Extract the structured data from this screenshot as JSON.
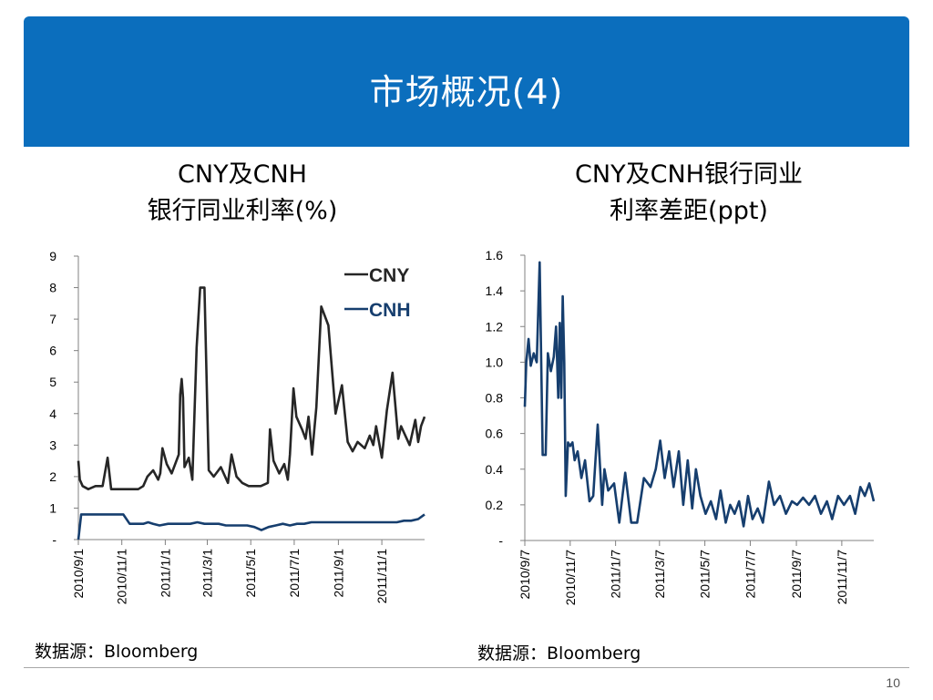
{
  "header": {
    "title": "市场概况(4)"
  },
  "chart_data": [
    {
      "type": "line",
      "title_line1": "CNY及CNH",
      "title_line2": "银行同业利率(%)",
      "xlabel": "",
      "ylabel": "",
      "x_range": [
        "2010/9/1",
        "2011/12/31"
      ],
      "ylim": [
        0,
        9
      ],
      "y_ticks": [
        "-",
        "1",
        "2",
        "3",
        "4",
        "5",
        "6",
        "7",
        "8",
        "9"
      ],
      "x_ticks": [
        "2010/9/1",
        "2010/11/1",
        "2011/1/1",
        "2011/3/1",
        "2011/5/1",
        "2011/7/1",
        "2011/9/1",
        "2011/11/1"
      ],
      "legend_position": "top-right",
      "series": [
        {
          "name": "CNY",
          "color": "#262626",
          "x": [
            "2010/9/1",
            "2010/9/3",
            "2010/9/7",
            "2010/9/15",
            "2010/9/25",
            "2010/10/5",
            "2010/10/12",
            "2010/10/17",
            "2010/10/25",
            "2010/11/5",
            "2010/11/14",
            "2010/11/24",
            "2010/12/1",
            "2010/12/7",
            "2010/12/15",
            "2010/12/22",
            "2010/12/25",
            "2010/12/28",
            "2011/1/3",
            "2011/1/10",
            "2011/1/20",
            "2011/1/22",
            "2011/1/24",
            "2011/1/26",
            "2011/1/28",
            "2011/2/3",
            "2011/2/8",
            "2011/2/14",
            "2011/2/19",
            "2011/2/25",
            "2011/3/3",
            "2011/3/10",
            "2011/3/20",
            "2011/3/30",
            "2011/4/4",
            "2011/4/11",
            "2011/4/19",
            "2011/4/28",
            "2011/5/5",
            "2011/5/15",
            "2011/5/25",
            "2011/5/28",
            "2011/6/2",
            "2011/6/10",
            "2011/6/17",
            "2011/6/22",
            "2011/6/25",
            "2011/6/30",
            "2011/7/4",
            "2011/7/12",
            "2011/7/17",
            "2011/7/21",
            "2011/7/26",
            "2011/8/1",
            "2011/8/8",
            "2011/8/18",
            "2011/8/28",
            "2011/9/6",
            "2011/9/14",
            "2011/9/21",
            "2011/9/28",
            "2011/10/8",
            "2011/10/15",
            "2011/10/20",
            "2011/10/24",
            "2011/11/1",
            "2011/11/8",
            "2011/11/16",
            "2011/11/24",
            "2011/11/28",
            "2011/12/2",
            "2011/12/10",
            "2011/12/18",
            "2011/12/22",
            "2011/12/26",
            "2011/12/31"
          ],
          "values": [
            2.5,
            1.9,
            1.7,
            1.6,
            1.7,
            1.7,
            2.6,
            1.6,
            1.6,
            1.6,
            1.6,
            1.6,
            1.7,
            2.0,
            2.2,
            1.9,
            2.1,
            2.9,
            2.4,
            2.1,
            2.7,
            4.6,
            5.1,
            4.5,
            2.3,
            2.6,
            1.9,
            6.1,
            8.0,
            8.0,
            2.2,
            2.0,
            2.3,
            1.8,
            2.7,
            2.0,
            1.8,
            1.7,
            1.7,
            1.7,
            1.8,
            3.5,
            2.5,
            2.1,
            2.4,
            1.9,
            2.7,
            4.8,
            3.9,
            3.5,
            3.2,
            3.9,
            2.7,
            4.2,
            7.4,
            6.8,
            4.0,
            4.9,
            3.1,
            2.8,
            3.1,
            2.9,
            3.3,
            3.0,
            3.6,
            2.6,
            4.1,
            5.3,
            3.2,
            3.6,
            3.4,
            3.0,
            3.8,
            3.1,
            3.6,
            3.9
          ]
        },
        {
          "name": "CNH",
          "color": "#163e6e",
          "x": [
            "2010/9/1",
            "2010/9/5",
            "2010/9/10",
            "2010/9/20",
            "2010/10/1",
            "2010/10/10",
            "2010/10/20",
            "2010/10/27",
            "2010/11/3",
            "2010/11/12",
            "2010/11/22",
            "2010/12/1",
            "2010/12/8",
            "2010/12/15",
            "2010/12/24",
            "2011/1/5",
            "2011/1/15",
            "2011/1/25",
            "2011/2/5",
            "2011/2/15",
            "2011/2/25",
            "2011/3/7",
            "2011/3/17",
            "2011/3/27",
            "2011/4/6",
            "2011/4/16",
            "2011/4/26",
            "2011/5/6",
            "2011/5/16",
            "2011/5/26",
            "2011/6/5",
            "2011/6/15",
            "2011/6/25",
            "2011/7/5",
            "2011/7/15",
            "2011/7/25",
            "2011/8/4",
            "2011/8/14",
            "2011/8/24",
            "2011/9/3",
            "2011/9/13",
            "2011/9/23",
            "2011/10/3",
            "2011/10/13",
            "2011/10/23",
            "2011/11/2",
            "2011/11/12",
            "2011/11/22",
            "2011/12/2",
            "2011/12/12",
            "2011/12/22",
            "2011/12/31"
          ],
          "values": [
            0.0,
            0.8,
            0.8,
            0.8,
            0.8,
            0.8,
            0.8,
            0.8,
            0.8,
            0.5,
            0.5,
            0.5,
            0.55,
            0.5,
            0.45,
            0.5,
            0.5,
            0.5,
            0.5,
            0.55,
            0.5,
            0.5,
            0.5,
            0.45,
            0.45,
            0.45,
            0.45,
            0.4,
            0.3,
            0.4,
            0.45,
            0.5,
            0.45,
            0.5,
            0.5,
            0.55,
            0.55,
            0.55,
            0.55,
            0.55,
            0.55,
            0.55,
            0.55,
            0.55,
            0.55,
            0.55,
            0.55,
            0.55,
            0.6,
            0.6,
            0.65,
            0.8
          ]
        }
      ]
    },
    {
      "type": "line",
      "title_line1": "CNY及CNH银行同业",
      "title_line2": "利率差距(ppt)",
      "xlabel": "",
      "ylabel": "",
      "x_range": [
        "2010/9/7",
        "2011/12/20"
      ],
      "ylim": [
        0,
        1.6
      ],
      "y_ticks": [
        "-",
        "0.2",
        "0.4",
        "0.6",
        "0.8",
        "1.0",
        "1.2",
        "1.4",
        "1.6"
      ],
      "x_ticks": [
        "2010/9/7",
        "2010/11/7",
        "2011/1/7",
        "2011/3/7",
        "2011/5/7",
        "2011/7/7",
        "2011/9/7",
        "2011/11/7"
      ],
      "series": [
        {
          "name": "",
          "color": "#163e6e",
          "x": [
            "2010/9/7",
            "2010/9/9",
            "2010/9/12",
            "2010/9/15",
            "2010/9/19",
            "2010/9/23",
            "2010/9/27",
            "2010/10/1",
            "2010/10/3",
            "2010/10/5",
            "2010/10/8",
            "2010/10/12",
            "2010/10/16",
            "2010/10/19",
            "2010/10/22",
            "2010/10/24",
            "2010/10/26",
            "2010/10/28",
            "2010/10/30",
            "2010/11/1",
            "2010/11/4",
            "2010/11/7",
            "2010/11/10",
            "2010/11/13",
            "2010/11/17",
            "2010/11/22",
            "2010/11/27",
            "2010/12/3",
            "2010/12/8",
            "2010/12/14",
            "2010/12/20",
            "2010/12/23",
            "2010/12/28",
            "2011/1/5",
            "2011/1/12",
            "2011/1/20",
            "2011/1/28",
            "2011/2/5",
            "2011/2/14",
            "2011/2/23",
            "2011/3/2",
            "2011/3/8",
            "2011/3/14",
            "2011/3/20",
            "2011/3/26",
            "2011/4/2",
            "2011/4/8",
            "2011/4/14",
            "2011/4/20",
            "2011/4/25",
            "2011/5/1",
            "2011/5/8",
            "2011/5/15",
            "2011/5/22",
            "2011/5/28",
            "2011/6/4",
            "2011/6/10",
            "2011/6/16",
            "2011/6/22",
            "2011/6/28",
            "2011/7/4",
            "2011/7/10",
            "2011/7/17",
            "2011/7/24",
            "2011/8/1",
            "2011/8/8",
            "2011/8/16",
            "2011/8/24",
            "2011/9/1",
            "2011/9/8",
            "2011/9/16",
            "2011/9/24",
            "2011/10/2",
            "2011/10/10",
            "2011/10/18",
            "2011/10/25",
            "2011/11/2",
            "2011/11/10",
            "2011/11/18",
            "2011/11/25",
            "2011/12/2",
            "2011/12/8",
            "2011/12/14",
            "2011/12/20"
          ],
          "values": [
            0.75,
            1.0,
            1.13,
            0.98,
            1.05,
            1.0,
            1.56,
            0.48,
            0.48,
            0.48,
            1.05,
            0.95,
            1.03,
            1.2,
            0.8,
            1.22,
            0.8,
            1.37,
            1.0,
            0.25,
            0.55,
            0.53,
            0.55,
            0.45,
            0.5,
            0.35,
            0.45,
            0.22,
            0.25,
            0.65,
            0.2,
            0.4,
            0.28,
            0.32,
            0.1,
            0.38,
            0.1,
            0.1,
            0.35,
            0.3,
            0.4,
            0.56,
            0.35,
            0.5,
            0.3,
            0.5,
            0.2,
            0.45,
            0.18,
            0.4,
            0.25,
            0.15,
            0.22,
            0.12,
            0.28,
            0.1,
            0.2,
            0.15,
            0.22,
            0.08,
            0.25,
            0.12,
            0.18,
            0.1,
            0.33,
            0.2,
            0.25,
            0.15,
            0.22,
            0.2,
            0.24,
            0.2,
            0.25,
            0.15,
            0.22,
            0.12,
            0.25,
            0.2,
            0.25,
            0.15,
            0.3,
            0.25,
            0.32,
            0.22
          ]
        }
      ]
    }
  ],
  "sources": {
    "left": "数据源：Bloomberg",
    "right": "数据源：Bloomberg"
  },
  "page_number": "10"
}
